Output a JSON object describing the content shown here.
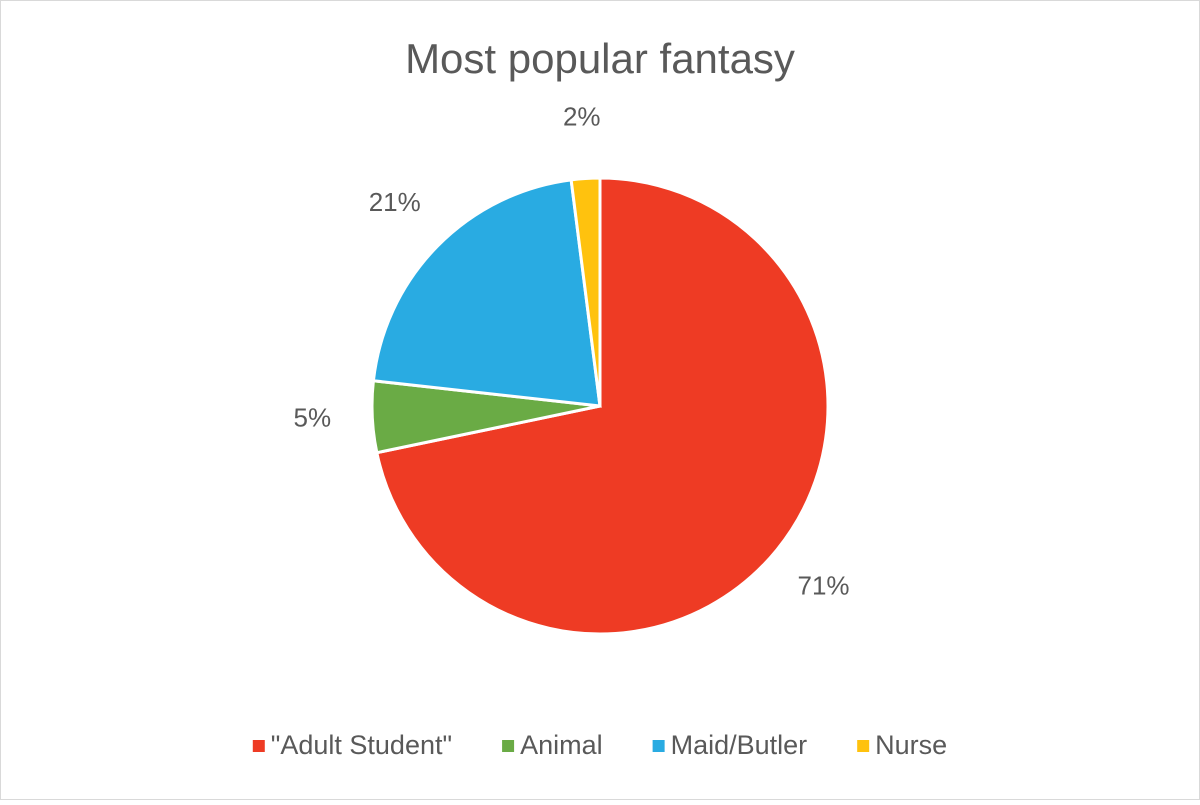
{
  "chart_data": {
    "type": "pie",
    "title": "Most popular fantasy",
    "categories": [
      "\"Adult Student\"",
      "Animal",
      "Maid/Butler",
      "Nurse"
    ],
    "values": [
      71,
      5,
      21,
      2
    ],
    "value_labels": [
      "71%",
      "5%",
      "21%",
      "2%"
    ],
    "colors": [
      "#EE3B24",
      "#6AAB45",
      "#29ABE2",
      "#FFC20E"
    ],
    "legend": "bottom"
  }
}
